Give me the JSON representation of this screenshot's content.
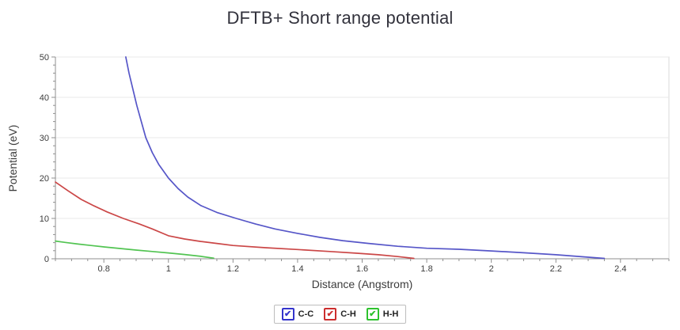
{
  "chart_data": {
    "type": "line",
    "title": "DFTB+ Short range potential",
    "xlabel": "Distance (Angstrom)",
    "ylabel": "Potential (eV)",
    "xlim": [
      0.65,
      2.55
    ],
    "ylim": [
      0,
      50
    ],
    "x_ticks": [
      0.8,
      1.0,
      1.2,
      1.4,
      1.6,
      1.8,
      2.0,
      2.2,
      2.4
    ],
    "x_tick_labels": [
      "0.8",
      "1",
      "1.2",
      "1.4",
      "1.6",
      "1.8",
      "2",
      "2.2",
      "2.4"
    ],
    "y_ticks": [
      0,
      10,
      20,
      30,
      40,
      50
    ],
    "y_tick_labels": [
      "0",
      "10",
      "20",
      "30",
      "40",
      "50"
    ],
    "x_minor_step": 0.05,
    "y_minor_step": 2,
    "grid": "horizontal-only",
    "legend_position": "bottom",
    "legend": {
      "check_glyph": "✔"
    },
    "series": [
      {
        "name": "C-C",
        "color": "#5656c8",
        "checkbox_color": "#3434cc",
        "checked": true,
        "points": [
          [
            0.868,
            50
          ],
          [
            0.878,
            46
          ],
          [
            0.89,
            42
          ],
          [
            0.902,
            38
          ],
          [
            0.916,
            34
          ],
          [
            0.93,
            30
          ],
          [
            0.95,
            26.3
          ],
          [
            0.97,
            23.4
          ],
          [
            1.0,
            20
          ],
          [
            1.03,
            17.4
          ],
          [
            1.06,
            15.3
          ],
          [
            1.1,
            13.2
          ],
          [
            1.15,
            11.5
          ],
          [
            1.21,
            10
          ],
          [
            1.27,
            8.6
          ],
          [
            1.33,
            7.4
          ],
          [
            1.4,
            6.3
          ],
          [
            1.47,
            5.3
          ],
          [
            1.54,
            4.5
          ],
          [
            1.62,
            3.8
          ],
          [
            1.71,
            3.1
          ],
          [
            1.8,
            2.6
          ],
          [
            1.9,
            2.35
          ],
          [
            2.0,
            1.95
          ],
          [
            2.1,
            1.5
          ],
          [
            2.2,
            1.0
          ],
          [
            2.28,
            0.5
          ],
          [
            2.35,
            0.1
          ]
        ]
      },
      {
        "name": "C-H",
        "color": "#cb4747",
        "checkbox_color": "#cc2e2e",
        "checked": true,
        "points": [
          [
            0.65,
            19.0
          ],
          [
            0.69,
            16.8
          ],
          [
            0.73,
            14.7
          ],
          [
            0.77,
            13.1
          ],
          [
            0.81,
            11.6
          ],
          [
            0.86,
            10.0
          ],
          [
            0.91,
            8.6
          ],
          [
            0.95,
            7.4
          ],
          [
            1.0,
            5.7
          ],
          [
            1.05,
            4.9
          ],
          [
            1.1,
            4.3
          ],
          [
            1.15,
            3.8
          ],
          [
            1.2,
            3.3
          ],
          [
            1.3,
            2.75
          ],
          [
            1.4,
            2.3
          ],
          [
            1.5,
            1.8
          ],
          [
            1.58,
            1.4
          ],
          [
            1.65,
            1.0
          ],
          [
            1.71,
            0.55
          ],
          [
            1.76,
            0.1
          ]
        ]
      },
      {
        "name": "H-H",
        "color": "#52c452",
        "checkbox_color": "#2ec22e",
        "checked": true,
        "points": [
          [
            0.65,
            4.4
          ],
          [
            0.68,
            4.05
          ],
          [
            0.72,
            3.65
          ],
          [
            0.76,
            3.3
          ],
          [
            0.8,
            2.95
          ],
          [
            0.85,
            2.55
          ],
          [
            0.9,
            2.15
          ],
          [
            0.95,
            1.8
          ],
          [
            1.0,
            1.45
          ],
          [
            1.05,
            1.05
          ],
          [
            1.1,
            0.6
          ],
          [
            1.14,
            0.15
          ]
        ]
      }
    ],
    "colors": {
      "gridline": "#e8e8e8",
      "plot_border": "#d9d9d9",
      "spine": "#8f8f8f",
      "tick_label": "#3c3c3c",
      "title": "#32323c"
    }
  }
}
